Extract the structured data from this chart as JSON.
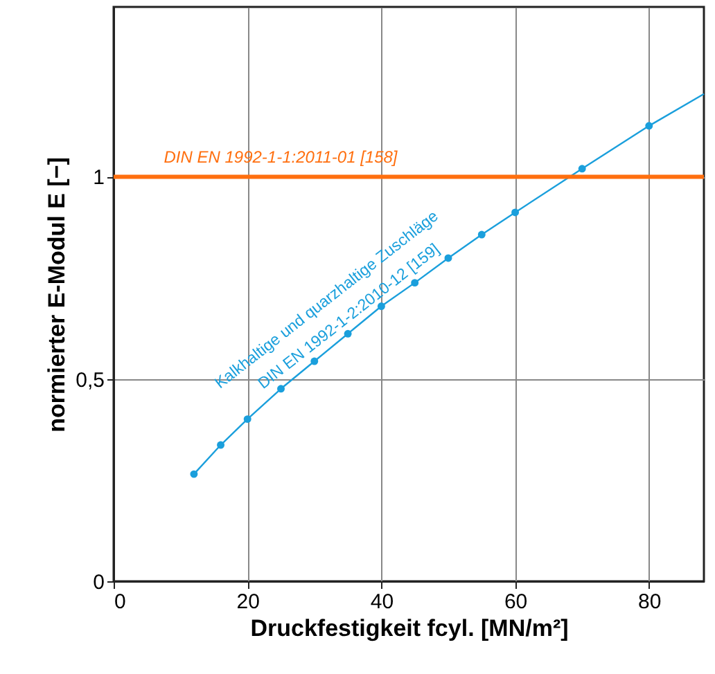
{
  "chart_data": {
    "type": "line",
    "xlabel": "Druckfestigkeit fcyl. [MN/m²]",
    "ylabel": "normierter E-Modul E [−]",
    "xlim": [
      0,
      88.2
    ],
    "xticks": [
      0,
      20,
      40,
      60,
      80
    ],
    "ylim": [
      0,
      1.42
    ],
    "yticks": [
      0,
      {
        "value": 0.5,
        "label": "0,5"
      },
      1
    ],
    "grid": true,
    "series": [
      {
        "color": "#1a9fdc",
        "marker": "circle",
        "x": [
          12,
          16,
          20,
          25,
          30,
          35,
          40,
          45,
          50,
          55,
          60,
          70,
          80
        ],
        "values": [
          0.265,
          0.337,
          0.401,
          0.476,
          0.544,
          0.612,
          0.68,
          0.738,
          0.799,
          0.857,
          0.912,
          1.02,
          1.126
        ]
      },
      {
        "color": "#1a9fdc",
        "marker": "none",
        "x": [
          80,
          88.2
        ],
        "values": [
          1.126,
          1.205
        ]
      }
    ],
    "ref_lines": [
      {
        "axis": "y",
        "value": 1,
        "color": "#ff6f0f"
      }
    ],
    "annotations": [
      "Kalkhaltige und quarzhaltige Zuschläge",
      "DIN EN 1992-1-2:2010-12 [159]",
      {
        "text": "DIN EN 1992-1-1:2011-01 [158]",
        "x": 7.5,
        "y": 1
      }
    ]
  }
}
